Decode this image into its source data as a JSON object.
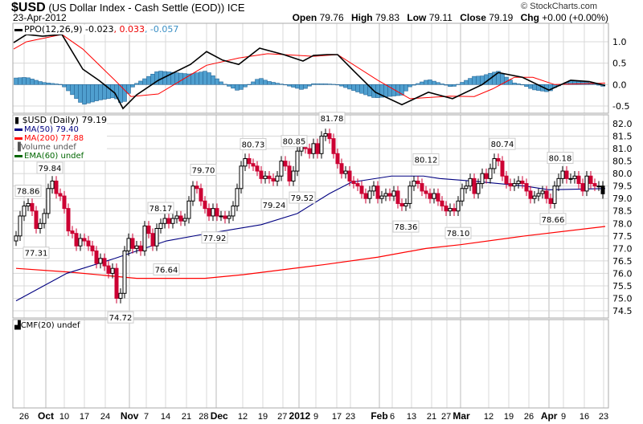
{
  "header": {
    "symbol": "$USD",
    "name": "(US Dollar Index - Cash Settle (EOD))",
    "exchange": "ICE",
    "date": "23-Apr-2012",
    "copyright": "© StockCharts.com",
    "open_label": "Open",
    "open": "79.76",
    "high_label": "High",
    "high": "79.83",
    "low_label": "Low",
    "low": "79.11",
    "close_label": "Close",
    "close": "79.19",
    "chg_label": "Chg",
    "chg": "+0.00 (+0.00%)"
  },
  "colors": {
    "up": "#ffffff",
    "down": "#cc0033",
    "ma50": "#000080",
    "ma200": "#ff0000",
    "ppo": "#000000",
    "signal": "#ff0000",
    "hist": "#4f9fcf",
    "ema": "#006600",
    "grid": "#d8d8d8"
  },
  "chart_data": [
    {
      "type": "line",
      "title": "PPO(12,26,9)",
      "legend": {
        "ppo": "PPO(12,26,9) -0.023",
        "signal": ", 0.033",
        "hist": ", -0.057"
      },
      "ylim": [
        -0.7,
        1.4
      ],
      "yticks": [
        "1.0",
        "0.5",
        "0.0",
        "-0.5"
      ],
      "ytick_values": [
        1,
        0.5,
        0,
        -0.5
      ],
      "ppo_points": [
        [
          -0.6,
          0.98
        ],
        [
          2.6,
          1.17
        ],
        [
          6.6,
          1.13
        ],
        [
          11.4,
          1.17
        ],
        [
          16.6,
          0.36
        ],
        [
          20.6,
          0.1
        ],
        [
          24.6,
          -0.2
        ],
        [
          26.6,
          -0.56
        ],
        [
          30,
          -0.24
        ],
        [
          35.4,
          0.1
        ],
        [
          43.4,
          0.47
        ],
        [
          47.4,
          0.77
        ],
        [
          51.4,
          0.57
        ],
        [
          55.4,
          0.47
        ],
        [
          60.6,
          0.85
        ],
        [
          66.6,
          0.7
        ],
        [
          71.4,
          0.55
        ],
        [
          74,
          0.68
        ],
        [
          77.4,
          0.7
        ],
        [
          80,
          0.7
        ],
        [
          84,
          0.32
        ],
        [
          89.4,
          -0.18
        ],
        [
          96,
          -0.47
        ],
        [
          102.6,
          -0.18
        ],
        [
          108.6,
          -0.33
        ],
        [
          116,
          0.0
        ],
        [
          120,
          0.28
        ],
        [
          126,
          0.17
        ],
        [
          132.6,
          -0.13
        ],
        [
          138,
          0.1
        ],
        [
          142.6,
          0.07
        ],
        [
          146.6,
          -0.023
        ]
      ],
      "signal_points": [
        [
          -0.6,
          0.83
        ],
        [
          2.6,
          1.0
        ],
        [
          11.4,
          1.17
        ],
        [
          16.6,
          0.83
        ],
        [
          24.6,
          0.1
        ],
        [
          28.6,
          -0.28
        ],
        [
          35.4,
          -0.22
        ],
        [
          47.4,
          0.45
        ],
        [
          55.4,
          0.62
        ],
        [
          62.6,
          0.72
        ],
        [
          74,
          0.66
        ],
        [
          80,
          0.7
        ],
        [
          90,
          0.1
        ],
        [
          98,
          -0.33
        ],
        [
          108,
          -0.27
        ],
        [
          114,
          -0.28
        ],
        [
          118.6,
          -0.1
        ],
        [
          124,
          0.17
        ],
        [
          128.6,
          0.17
        ],
        [
          134,
          0.0
        ],
        [
          146.6,
          0.033
        ]
      ]
    },
    {
      "type": "candlestick",
      "title": "$USD (Daily) 79.19",
      "legend": {
        "price": "$USD (Daily) 79.19",
        "ma50": "MA(50) 79.40",
        "ma200": "MA(200) 77.88",
        "volume": "Volume undef",
        "ema": "EMA(60) undef"
      },
      "ylim": [
        74.2,
        82.3
      ],
      "yticks": [
        "82.0",
        "81.5",
        "81.0",
        "80.5",
        "80.0",
        "79.5",
        "79.0",
        "78.5",
        "78.0",
        "77.5",
        "77.0",
        "76.5",
        "76.0",
        "75.5",
        "75.0",
        "74.5"
      ],
      "closes": [
        77.5,
        78.3,
        78.7,
        78.8,
        78.5,
        77.8,
        78.0,
        78.4,
        79.4,
        79.7,
        79.2,
        79.1,
        78.6,
        77.7,
        77.6,
        77.1,
        77.4,
        77.3,
        77.1,
        76.9,
        76.4,
        76.6,
        76.3,
        76.0,
        76.2,
        75.0,
        75.2,
        76.9,
        77.4,
        77.0,
        77.1,
        76.9,
        77.9,
        77.6,
        77.1,
        77.8,
        78.0,
        78.2,
        78.0,
        78.2,
        78.3,
        78.1,
        78.2,
        78.9,
        79.5,
        79.4,
        78.9,
        78.6,
        78.3,
        78.6,
        78.3,
        78.3,
        78.2,
        78.3,
        78.7,
        79.4,
        80.3,
        80.6,
        80.4,
        80.3,
        80.1,
        79.8,
        79.9,
        79.8,
        79.7,
        79.9,
        80.5,
        80.3,
        79.7,
        80.1,
        80.9,
        81.2,
        81.0,
        80.8,
        81.2,
        80.8,
        81.5,
        81.6,
        81.4,
        80.8,
        80.4,
        80.0,
        80.1,
        79.7,
        79.6,
        79.5,
        79.2,
        79.0,
        79.3,
        79.5,
        79.0,
        79.1,
        79.2,
        79.1,
        79.3,
        78.8,
        78.7,
        78.8,
        79.5,
        79.7,
        79.6,
        79.3,
        79.2,
        79.0,
        79.2,
        78.9,
        78.7,
        78.5,
        78.6,
        78.5,
        78.9,
        79.4,
        79.5,
        79.8,
        79.2,
        79.6,
        80.0,
        79.8,
        80.2,
        80.6,
        80.5,
        79.9,
        79.6,
        79.5,
        79.6,
        79.7,
        79.6,
        79.3,
        79.0,
        79.1,
        79.2,
        79.3,
        79.0,
        78.8,
        79.5,
        79.8,
        80.1,
        79.8,
        79.8,
        79.9,
        79.6,
        79.3,
        79.9,
        79.6,
        79.5,
        79.5,
        79.19
      ],
      "ma50_points": [
        [
          0,
          74.9
        ],
        [
          12.6,
          76.0
        ],
        [
          24.6,
          76.6
        ],
        [
          37.4,
          77.3
        ],
        [
          46,
          77.55
        ],
        [
          61,
          77.95
        ],
        [
          70,
          78.4
        ],
        [
          78,
          79.2
        ],
        [
          83.4,
          79.65
        ],
        [
          93.4,
          79.9
        ],
        [
          101.4,
          79.9
        ],
        [
          105.4,
          79.8
        ],
        [
          113.4,
          79.7
        ],
        [
          126.6,
          79.5
        ],
        [
          132.6,
          79.35
        ],
        [
          146.6,
          79.4
        ]
      ],
      "ma200_points": [
        [
          0,
          76.2
        ],
        [
          13.4,
          76.05
        ],
        [
          30,
          75.8
        ],
        [
          47,
          75.8
        ],
        [
          56.6,
          75.95
        ],
        [
          76.6,
          76.35
        ],
        [
          90,
          76.65
        ],
        [
          102,
          77.0
        ],
        [
          110.6,
          77.15
        ],
        [
          126.6,
          77.5
        ],
        [
          146.6,
          77.88
        ]
      ],
      "annotations": [
        {
          "bar": 3,
          "value": 78.86,
          "pos": "above",
          "text": "78.86"
        },
        {
          "bar": 5,
          "value": 77.31,
          "pos": "below",
          "text": "77.31"
        },
        {
          "bar": 8.4,
          "value": 79.84,
          "pos": "above",
          "text": "79.84"
        },
        {
          "bar": 26,
          "value": 74.72,
          "pos": "below",
          "text": "74.72"
        },
        {
          "bar": 36,
          "value": 78.17,
          "pos": "above",
          "text": "78.17"
        },
        {
          "bar": 37.4,
          "value": 76.64,
          "pos": "below",
          "text": "76.64"
        },
        {
          "bar": 46.6,
          "value": 79.7,
          "pos": "above",
          "text": "79.70"
        },
        {
          "bar": 49.4,
          "value": 77.92,
          "pos": "below",
          "text": "77.92"
        },
        {
          "bar": 59,
          "value": 80.73,
          "pos": "above",
          "text": "80.73"
        },
        {
          "bar": 64.2,
          "value": 79.24,
          "pos": "below",
          "text": "79.24"
        },
        {
          "bar": 69.2,
          "value": 80.85,
          "pos": "above",
          "text": "80.85"
        },
        {
          "bar": 71.2,
          "value": 79.52,
          "pos": "below",
          "text": "79.52"
        },
        {
          "bar": 78.6,
          "value": 81.78,
          "pos": "above",
          "text": "81.78"
        },
        {
          "bar": 97,
          "value": 78.36,
          "pos": "below",
          "text": "78.36"
        },
        {
          "bar": 102,
          "value": 80.12,
          "pos": "above",
          "text": "80.12"
        },
        {
          "bar": 110,
          "value": 78.1,
          "pos": "below",
          "text": "78.10"
        },
        {
          "bar": 121,
          "value": 80.74,
          "pos": "above",
          "text": "80.74"
        },
        {
          "bar": 135.4,
          "value": 80.18,
          "pos": "above",
          "text": "80.18"
        },
        {
          "bar": 133.6,
          "value": 78.66,
          "pos": "below",
          "text": "78.66"
        }
      ]
    },
    {
      "type": "line",
      "title": "CMF(20) undef",
      "legend": {
        "cmf": "CMF(20) undef"
      }
    }
  ],
  "xaxis": {
    "ticks": [
      {
        "bar": 2,
        "label": "26"
      },
      {
        "bar": 7.4,
        "label": "Oct",
        "major": true
      },
      {
        "bar": 12,
        "label": "10"
      },
      {
        "bar": 17,
        "label": "17"
      },
      {
        "bar": 22.2,
        "label": "24"
      },
      {
        "bar": 28.2,
        "label": "Nov",
        "major": true
      },
      {
        "bar": 32.4,
        "label": "7"
      },
      {
        "bar": 37.2,
        "label": "14"
      },
      {
        "bar": 42.4,
        "label": "21"
      },
      {
        "bar": 47.4,
        "label": "28"
      },
      {
        "bar": 49.8,
        "label": "Dec",
        "major": true
      },
      {
        "bar": 56.4,
        "label": "12"
      },
      {
        "bar": 61.4,
        "label": "19"
      },
      {
        "bar": 66.4,
        "label": "27"
      },
      {
        "bar": 70.4,
        "label": "2012",
        "major": true
      },
      {
        "bar": 74.6,
        "label": "9"
      },
      {
        "bar": 79.8,
        "label": "17"
      },
      {
        "bar": 83.2,
        "label": "23"
      },
      {
        "bar": 90.4,
        "label": "Feb",
        "major": true
      },
      {
        "bar": 93.6,
        "label": "6"
      },
      {
        "bar": 98.4,
        "label": "13"
      },
      {
        "bar": 103.4,
        "label": "21"
      },
      {
        "bar": 107.2,
        "label": "27"
      },
      {
        "bar": 110.6,
        "label": "Mar",
        "major": true
      },
      {
        "bar": 117.6,
        "label": "12"
      },
      {
        "bar": 122.6,
        "label": "19"
      },
      {
        "bar": 127.6,
        "label": "26"
      },
      {
        "bar": 132.6,
        "label": "Apr",
        "major": true
      },
      {
        "bar": 136.2,
        "label": "9"
      },
      {
        "bar": 141.4,
        "label": "16"
      },
      {
        "bar": 146.2,
        "label": "23"
      }
    ]
  }
}
